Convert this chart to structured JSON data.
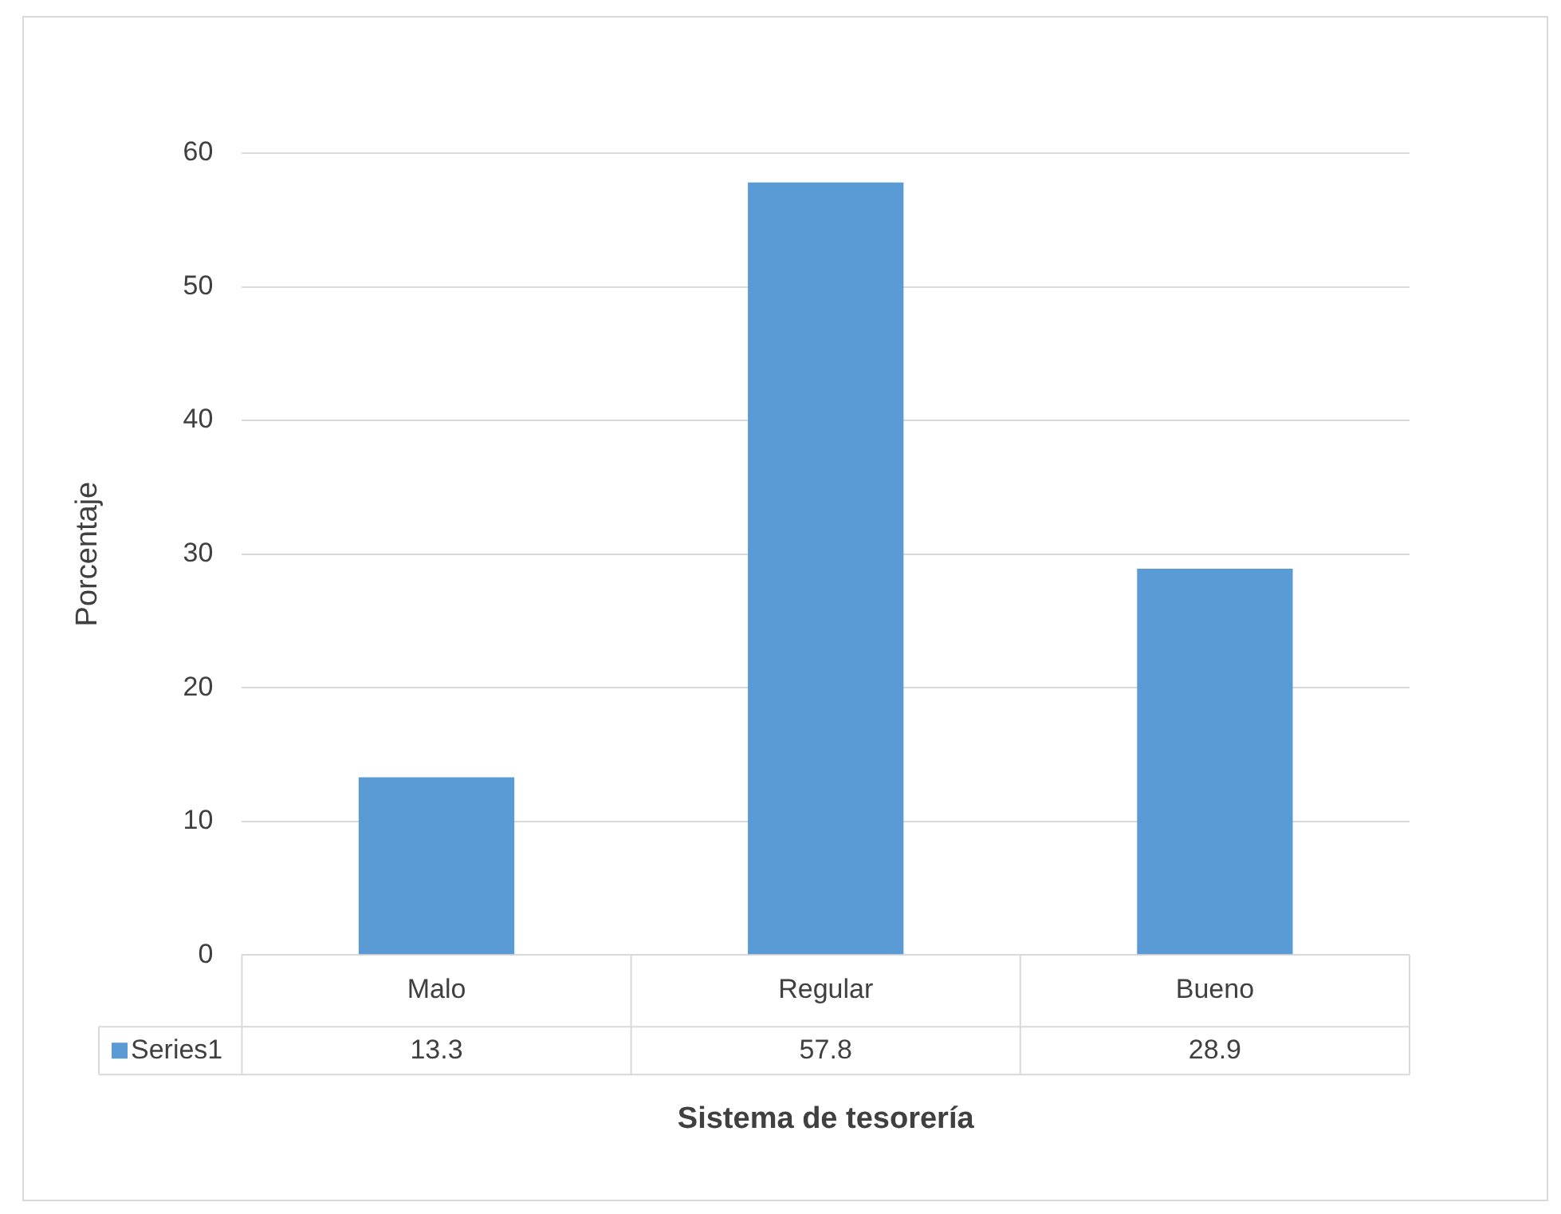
{
  "chart_data": {
    "type": "bar",
    "xlabel": "Sistema de tesorería",
    "ylabel": "Porcentaje",
    "categories": [
      "Malo",
      "Regular",
      "Bueno"
    ],
    "series": [
      {
        "name": "Series1",
        "color": "#5b9bd5",
        "values": [
          13.3,
          57.8,
          28.9
        ]
      }
    ],
    "ylim": [
      0,
      60
    ],
    "yticks": [
      0,
      10,
      20,
      30,
      40,
      50,
      60
    ],
    "grid": "y",
    "legend": "bottom",
    "data_labels": true
  }
}
